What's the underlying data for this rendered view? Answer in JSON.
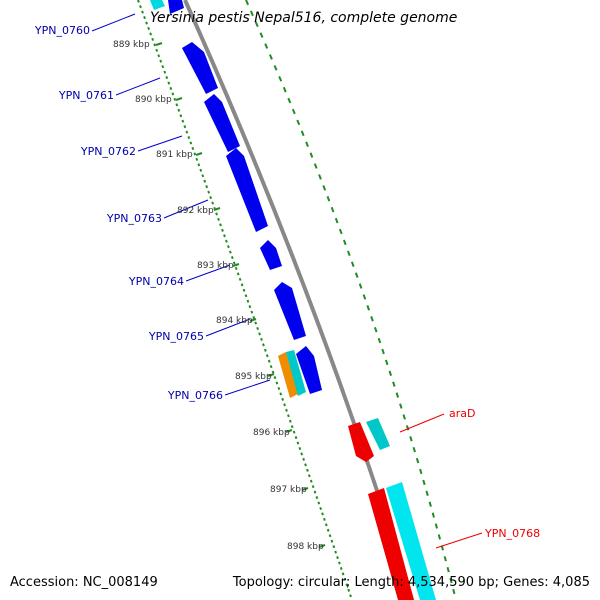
{
  "title": "Yersinia pestis Nepal516, complete genome",
  "accession": "Accession: NC_008149",
  "topology": "Topology: circular; Length: 4,534,590 bp; Genes: 4,085",
  "colors": {
    "backbone": "#888888",
    "tick": "#228b22",
    "gene_blue": "#0000ee",
    "gene_red": "#ee0000",
    "gene_cyan": "#00e5ee",
    "gene_orange": "#f08c00",
    "label_blue": "#0000aa",
    "label_red": "#ee0000"
  },
  "kbp_ticks": [
    "889 kbp",
    "890 kbp",
    "891 kbp",
    "892 kbp",
    "893 kbp",
    "894 kbp",
    "895 kbp",
    "896 kbp",
    "897 kbp",
    "898 kbp"
  ],
  "genes_left": [
    {
      "name": "YPN_0760"
    },
    {
      "name": "YPN_0761"
    },
    {
      "name": "YPN_0762"
    },
    {
      "name": "YPN_0763"
    },
    {
      "name": "YPN_0764"
    },
    {
      "name": "YPN_0765"
    },
    {
      "name": "YPN_0766"
    }
  ],
  "genes_right": [
    {
      "name": "araD"
    },
    {
      "name": "YPN_0768"
    }
  ]
}
